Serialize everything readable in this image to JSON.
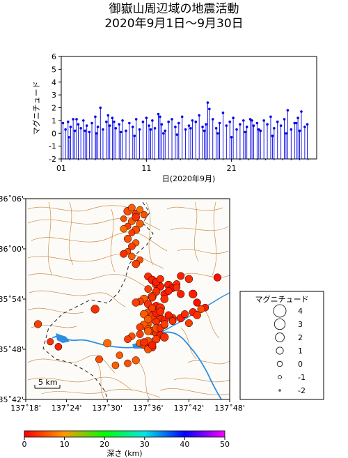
{
  "title": {
    "line1": "御嶽山周辺域の地震活動",
    "line2": "2020年9月1日～9月30日"
  },
  "chart_data": [
    {
      "type": "stem",
      "ylabel": "マグニチュード",
      "xlabel": "日(2020年9月)",
      "ylim": [
        -2,
        6
      ],
      "yticks": [
        "-2",
        "-1",
        "0",
        "1",
        "2",
        "3",
        "4",
        "5",
        "6"
      ],
      "xlim": [
        1,
        31
      ],
      "xticks": [
        "01",
        "11",
        "21"
      ],
      "xtick_values": [
        1,
        11,
        21
      ],
      "stem_base": -2,
      "color": "#0000ee",
      "x": [
        1.2,
        1.5,
        1.8,
        2.1,
        2.4,
        2.6,
        3.0,
        3.3,
        3.6,
        4.0,
        4.3,
        4.6,
        5.0,
        5.3,
        5.6,
        5.9,
        6.3,
        6.7,
        7.0,
        7.4,
        7.8,
        8.2,
        8.6,
        9.0,
        9.4,
        9.8,
        10.2,
        10.6,
        11.0,
        11.3,
        11.7,
        12.0,
        12.4,
        12.8,
        13.2,
        13.6,
        14.0,
        14.4,
        14.8,
        15.2,
        15.6,
        16.0,
        16.4,
        16.8,
        17.2,
        17.6,
        18.0,
        18.4,
        18.8,
        19.2,
        19.6,
        20.0,
        20.4,
        20.8,
        21.2,
        21.6,
        22.0,
        22.4,
        22.8,
        23.2,
        23.6,
        24.0,
        24.4,
        24.8,
        25.2,
        25.6,
        26.0,
        26.4,
        26.8,
        27.2,
        27.6,
        28.0,
        28.4,
        28.8,
        29.2,
        29.6,
        29.9,
        1.9,
        3.8,
        5.1,
        6.5,
        8.0,
        9.6,
        11.5,
        13.0,
        14.6,
        16.2,
        17.8,
        19.4,
        21.0,
        22.6,
        24.2,
        25.8,
        27.4,
        29.0,
        2.8,
        7.2,
        12.6,
        18.2,
        23.4,
        28.6
      ],
      "y": [
        0.8,
        0.3,
        0.9,
        0.5,
        1.1,
        0.2,
        0.7,
        0.4,
        1.0,
        0.6,
        0.1,
        0.8,
        1.3,
        0.5,
        2.0,
        0.3,
        0.9,
        0.6,
        1.2,
        0.4,
        0.7,
        1.0,
        0.2,
        0.8,
        0.5,
        1.1,
        0.3,
        0.9,
        1.2,
        0.6,
        1.0,
        0.4,
        1.5,
        0.7,
        0.2,
        0.9,
        1.1,
        0.5,
        0.8,
        1.3,
        0.3,
        0.6,
        1.0,
        0.9,
        1.4,
        0.5,
        0.7,
        1.9,
        1.1,
        0.4,
        0.8,
        1.6,
        0.6,
        0.9,
        1.2,
        0.3,
        0.7,
        1.0,
        0.5,
        1.1,
        0.6,
        0.8,
        0.2,
        1.0,
        0.7,
        1.3,
        0.4,
        0.9,
        0.6,
        1.1,
        1.8,
        0.3,
        0.8,
        1.2,
        1.7,
        0.5,
        0.7,
        -0.3,
        0.2,
        0.0,
        1.4,
        0.1,
        -0.2,
        0.3,
        0.0,
        -0.1,
        0.4,
        0.2,
        0.0,
        -0.3,
        0.1,
        0.3,
        -0.2,
        0.0,
        0.2,
        1.1,
        0.9,
        1.3,
        2.4,
        1.0,
        0.8
      ]
    },
    {
      "type": "scatter",
      "xticks": [
        "137˚18'",
        "137˚24'",
        "137˚30'",
        "137˚36'",
        "137˚42'",
        "137˚48'"
      ],
      "yticks": [
        "35˚42'",
        "35˚48'",
        "35˚54'",
        "36˚00'",
        "36˚06'"
      ],
      "xlim": [
        137.3,
        137.8
      ],
      "ylim": [
        35.7,
        36.1
      ],
      "scale_label": "5 km",
      "color_scale": {
        "label": "深さ (km)",
        "min": 0,
        "max": 50,
        "ticks": [
          "0",
          "10",
          "20",
          "30",
          "40",
          "50"
        ]
      },
      "size_legend": {
        "title": "マグニチュード",
        "labels": [
          "4",
          "3",
          "2",
          "1",
          "0",
          "-1",
          "-2"
        ],
        "values": [
          4,
          3,
          2,
          1,
          0,
          -1,
          -2
        ]
      },
      "events": {
        "lon": [
          137.55,
          137.56,
          137.57,
          137.58,
          137.54,
          137.56,
          137.57,
          137.59,
          137.55,
          137.58,
          137.57,
          137.56,
          137.54,
          137.55,
          137.57,
          137.56,
          137.55,
          137.54,
          137.56,
          137.58,
          137.57,
          137.6,
          137.61,
          137.62,
          137.63,
          137.6,
          137.62,
          137.64,
          137.61,
          137.59,
          137.58,
          137.6,
          137.62,
          137.63,
          137.61,
          137.6,
          137.59,
          137.61,
          137.63,
          137.64,
          137.62,
          137.6,
          137.59,
          137.58,
          137.6,
          137.61,
          137.62,
          137.63,
          137.64,
          137.62,
          137.6,
          137.58,
          137.59,
          137.61,
          137.6,
          137.62,
          137.63,
          137.65,
          137.66,
          137.67,
          137.68,
          137.7,
          137.71,
          137.72,
          137.69,
          137.74,
          137.77,
          137.73,
          137.66,
          137.64,
          137.62,
          137.6,
          137.61,
          137.63,
          137.65,
          137.66,
          137.64,
          137.62,
          137.6,
          137.58,
          137.56,
          137.55,
          137.59,
          137.61,
          137.63,
          137.64,
          137.66,
          137.68,
          137.69,
          137.71,
          137.72,
          137.7,
          137.57,
          137.55,
          137.48,
          137.53,
          137.52,
          137.5,
          137.47,
          137.33,
          137.36,
          137.38,
          137.57,
          137.61,
          137.65,
          137.67,
          137.68
        ],
        "lat": [
          36.075,
          36.082,
          36.07,
          36.078,
          36.06,
          36.055,
          36.063,
          36.068,
          36.045,
          36.05,
          36.038,
          36.032,
          36.04,
          36.02,
          36.012,
          36.005,
          35.995,
          35.99,
          35.985,
          35.978,
          35.97,
          35.945,
          35.938,
          35.93,
          35.925,
          35.92,
          35.915,
          35.91,
          35.905,
          35.9,
          35.895,
          35.89,
          35.886,
          35.882,
          35.878,
          35.874,
          35.87,
          35.866,
          35.862,
          35.858,
          35.855,
          35.852,
          35.848,
          35.844,
          35.84,
          35.836,
          35.832,
          35.828,
          35.824,
          35.82,
          35.816,
          35.812,
          35.808,
          35.804,
          35.8,
          35.934,
          35.94,
          35.928,
          35.922,
          35.93,
          35.946,
          35.94,
          35.91,
          35.893,
          35.87,
          35.883,
          35.943,
          35.88,
          35.862,
          35.9,
          35.872,
          35.86,
          35.882,
          35.875,
          35.868,
          35.858,
          35.848,
          35.842,
          35.836,
          35.83,
          35.826,
          35.82,
          35.814,
          35.808,
          35.842,
          35.85,
          35.856,
          35.862,
          35.87,
          35.874,
          35.868,
          35.852,
          35.778,
          35.772,
          35.78,
          35.788,
          35.768,
          35.812,
          35.88,
          35.85,
          35.815,
          35.805,
          35.893,
          35.903,
          35.916,
          35.923,
          35.91
        ],
        "mag": [
          1.5,
          1.0,
          1.2,
          0.8,
          0.5,
          1.0,
          1.3,
          0.9,
          0.7,
          1.1,
          1.4,
          0.6,
          0.9,
          1.2,
          0.8,
          1.0,
          0.5,
          1.1,
          0.9,
          0.7,
          1.3,
          1.2,
          1.5,
          1.8,
          1.3,
          1.0,
          1.4,
          1.2,
          1.7,
          1.6,
          1.1,
          1.3,
          1.5,
          1.9,
          1.2,
          1.0,
          1.4,
          1.6,
          1.3,
          1.1,
          1.2,
          1.5,
          1.8,
          1.0,
          1.3,
          1.4,
          1.2,
          1.1,
          1.6,
          1.3,
          1.5,
          1.2,
          1.0,
          1.4,
          1.2,
          1.3,
          1.1,
          1.5,
          1.2,
          1.0,
          1.1,
          1.3,
          1.6,
          1.2,
          0.9,
          1.0,
          1.2,
          1.1,
          1.4,
          1.3,
          1.5,
          1.2,
          1.0,
          1.3,
          1.1,
          1.2,
          1.0,
          1.4,
          1.2,
          1.1,
          0.9,
          1.0,
          1.2,
          1.3,
          1.1,
          1.2,
          1.0,
          1.4,
          1.1,
          1.2,
          1.3,
          1.1,
          1.2,
          1.0,
          1.1,
          0.9,
          1.0,
          1.4,
          1.6,
          1.2,
          0.8,
          1.0,
          1.3,
          1.2,
          1.1,
          1.0,
          1.2
        ],
        "depth": [
          5,
          6,
          4,
          7,
          5,
          6,
          3,
          5,
          4,
          6,
          5,
          4,
          7,
          5,
          6,
          4,
          5,
          3,
          6,
          5,
          4,
          3,
          2,
          3,
          2,
          4,
          3,
          2,
          5,
          6,
          4,
          3,
          2,
          3,
          4,
          5,
          6,
          4,
          3,
          2,
          3,
          5,
          6,
          4,
          5,
          4,
          3,
          2,
          3,
          4,
          5,
          6,
          4,
          3,
          5,
          2,
          3,
          2,
          1,
          3,
          2,
          3,
          2,
          1,
          3,
          2,
          1,
          5,
          4,
          3,
          2,
          6,
          4,
          3,
          2,
          3,
          4,
          5,
          6,
          4,
          5,
          4,
          3,
          2,
          3,
          4,
          3,
          2,
          3,
          2,
          3,
          4,
          6,
          5,
          5,
          6,
          6,
          7,
          3,
          4,
          3,
          2,
          4,
          3,
          2,
          3,
          2
        ]
      }
    }
  ]
}
